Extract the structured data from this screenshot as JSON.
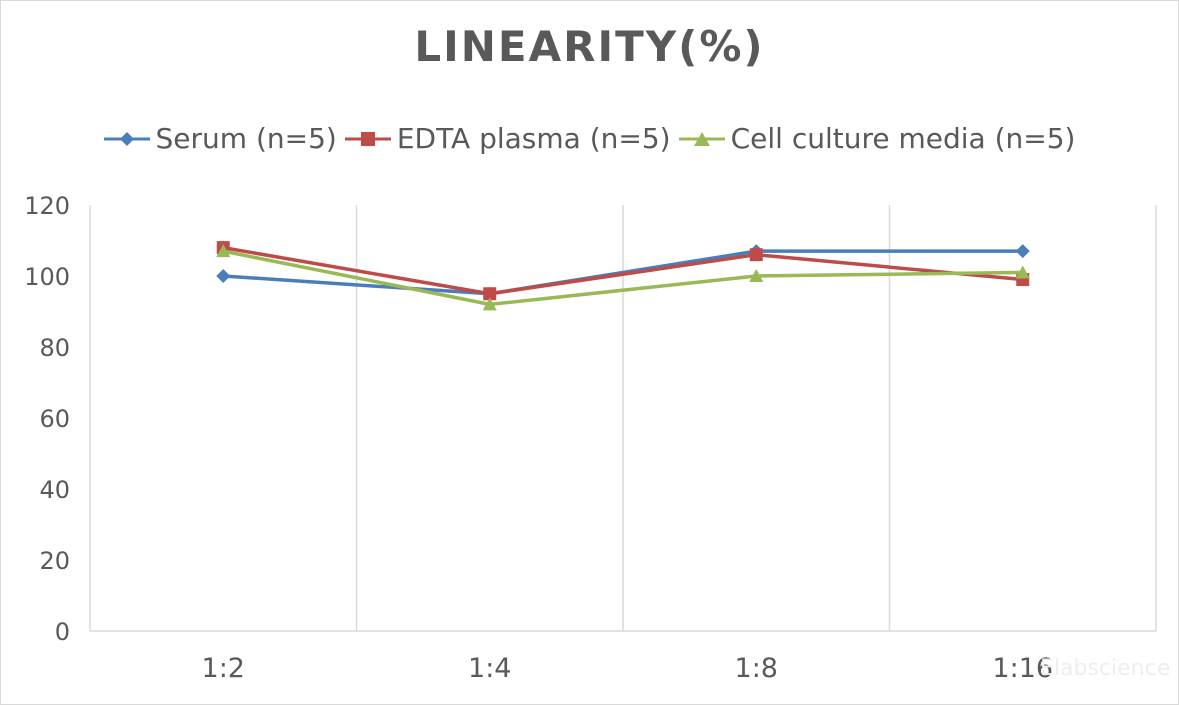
{
  "chart_data": {
    "type": "line",
    "title": "LINEARITY(%)",
    "xlabel": "",
    "ylabel": "",
    "categories": [
      "1:2",
      "1:4",
      "1:8",
      "1:16"
    ],
    "ylim": [
      0,
      120
    ],
    "yticks": [
      0,
      20,
      40,
      60,
      80,
      100,
      120
    ],
    "grid": "vertical",
    "legend_position": "top",
    "series": [
      {
        "name": "Serum (n=5)",
        "color": "#4a7ebb",
        "marker": "diamond",
        "values": [
          100,
          95,
          107,
          107
        ]
      },
      {
        "name": "EDTA plasma (n=5)",
        "color": "#be4b48",
        "marker": "square",
        "values": [
          108,
          95,
          106,
          99
        ]
      },
      {
        "name": "Cell culture media (n=5)",
        "color": "#98b954",
        "marker": "triangle",
        "values": [
          107,
          92,
          100,
          101
        ]
      }
    ]
  },
  "watermark": "Elabscience"
}
